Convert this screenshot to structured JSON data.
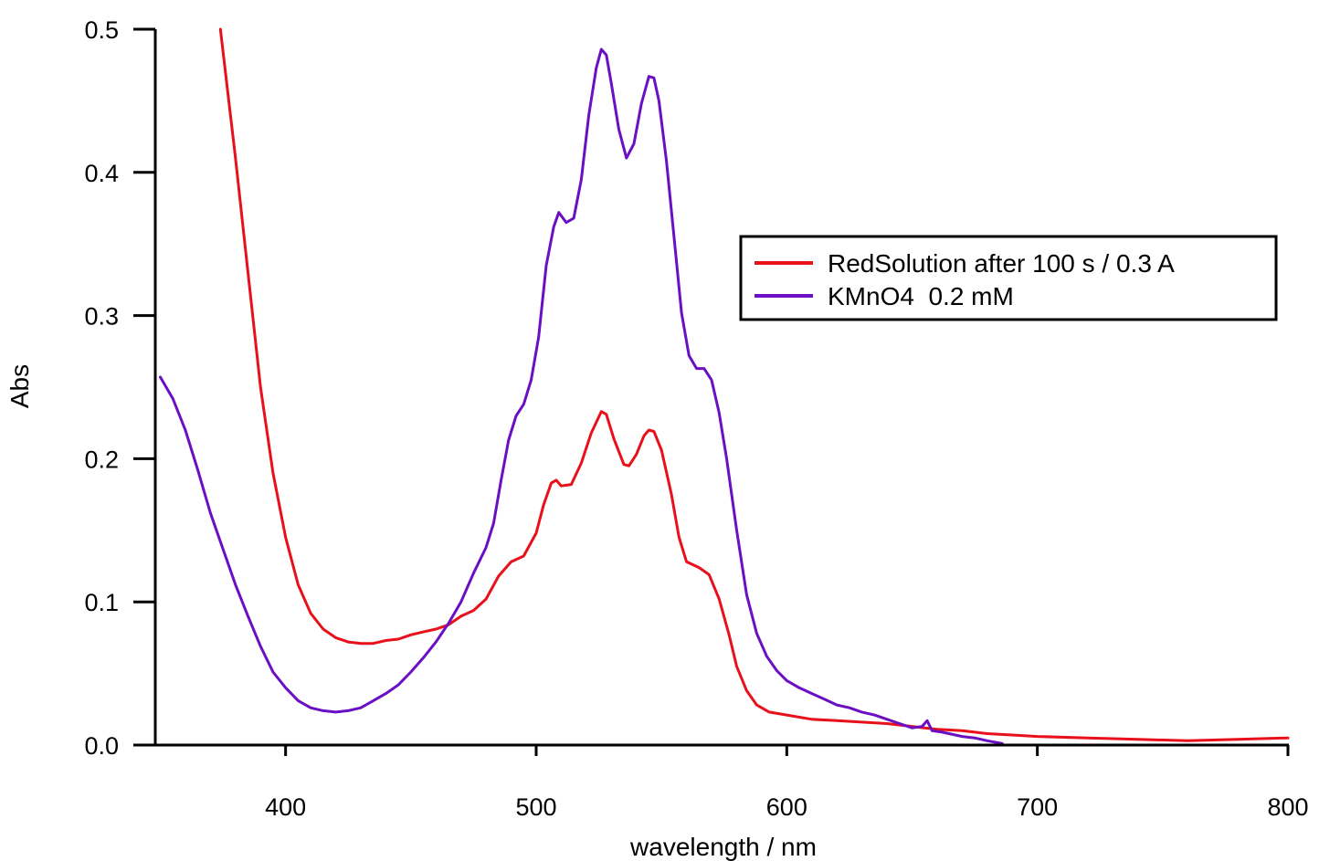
{
  "chart_data": {
    "type": "line",
    "xlabel": "wavelength / nm",
    "ylabel": "Abs",
    "xlim": [
      348,
      800
    ],
    "ylim": [
      0,
      0.5
    ],
    "x_ticks": [
      400,
      500,
      600,
      700,
      800
    ],
    "x_tick_labels": [
      "400",
      "500",
      "600",
      "700",
      "800"
    ],
    "y_ticks": [
      0,
      0.1,
      0.2,
      0.3,
      0.4,
      0.5
    ],
    "y_tick_labels": [
      "0.0",
      "0.1",
      "0.2",
      "0.3",
      "0.4",
      "0.5"
    ],
    "grid": false,
    "legend_position": "top-right",
    "series": [
      {
        "name": "RedSolution after 100 s / 0.3 A",
        "color": "#e8101a",
        "points": [
          [
            374,
            0.5
          ],
          [
            380,
            0.41
          ],
          [
            385,
            0.33
          ],
          [
            390,
            0.25
          ],
          [
            395,
            0.19
          ],
          [
            400,
            0.145
          ],
          [
            405,
            0.112
          ],
          [
            410,
            0.092
          ],
          [
            415,
            0.081
          ],
          [
            420,
            0.075
          ],
          [
            425,
            0.072
          ],
          [
            430,
            0.071
          ],
          [
            435,
            0.071
          ],
          [
            440,
            0.073
          ],
          [
            445,
            0.074
          ],
          [
            450,
            0.077
          ],
          [
            455,
            0.079
          ],
          [
            460,
            0.081
          ],
          [
            465,
            0.084
          ],
          [
            470,
            0.09
          ],
          [
            475,
            0.094
          ],
          [
            480,
            0.102
          ],
          [
            485,
            0.118
          ],
          [
            490,
            0.128
          ],
          [
            495,
            0.132
          ],
          [
            500,
            0.148
          ],
          [
            503,
            0.168
          ],
          [
            506,
            0.183
          ],
          [
            508,
            0.185
          ],
          [
            510,
            0.181
          ],
          [
            514,
            0.182
          ],
          [
            518,
            0.197
          ],
          [
            522,
            0.218
          ],
          [
            526,
            0.233
          ],
          [
            528,
            0.231
          ],
          [
            531,
            0.214
          ],
          [
            535,
            0.196
          ],
          [
            537,
            0.195
          ],
          [
            540,
            0.203
          ],
          [
            543,
            0.216
          ],
          [
            545,
            0.22
          ],
          [
            547,
            0.219
          ],
          [
            550,
            0.206
          ],
          [
            554,
            0.175
          ],
          [
            557,
            0.145
          ],
          [
            560,
            0.128
          ],
          [
            565,
            0.124
          ],
          [
            569,
            0.119
          ],
          [
            573,
            0.102
          ],
          [
            577,
            0.077
          ],
          [
            580,
            0.055
          ],
          [
            584,
            0.038
          ],
          [
            588,
            0.028
          ],
          [
            593,
            0.023
          ],
          [
            600,
            0.021
          ],
          [
            610,
            0.018
          ],
          [
            620,
            0.017
          ],
          [
            630,
            0.016
          ],
          [
            640,
            0.015
          ],
          [
            650,
            0.013
          ],
          [
            655,
            0.012
          ],
          [
            660,
            0.011
          ],
          [
            670,
            0.01
          ],
          [
            680,
            0.008
          ],
          [
            690,
            0.007
          ],
          [
            700,
            0.006
          ],
          [
            720,
            0.005
          ],
          [
            740,
            0.004
          ],
          [
            760,
            0.003
          ],
          [
            780,
            0.004
          ],
          [
            800,
            0.005
          ]
        ]
      },
      {
        "name": "KMnO4  0.2 mM",
        "color": "#6a0fc4",
        "points": [
          [
            350,
            0.257
          ],
          [
            355,
            0.242
          ],
          [
            360,
            0.22
          ],
          [
            365,
            0.192
          ],
          [
            370,
            0.162
          ],
          [
            375,
            0.137
          ],
          [
            380,
            0.112
          ],
          [
            385,
            0.09
          ],
          [
            390,
            0.069
          ],
          [
            395,
            0.051
          ],
          [
            400,
            0.04
          ],
          [
            405,
            0.031
          ],
          [
            410,
            0.026
          ],
          [
            415,
            0.024
          ],
          [
            420,
            0.023
          ],
          [
            425,
            0.024
          ],
          [
            430,
            0.026
          ],
          [
            435,
            0.031
          ],
          [
            440,
            0.036
          ],
          [
            445,
            0.042
          ],
          [
            450,
            0.051
          ],
          [
            455,
            0.061
          ],
          [
            460,
            0.072
          ],
          [
            465,
            0.085
          ],
          [
            470,
            0.1
          ],
          [
            475,
            0.12
          ],
          [
            480,
            0.138
          ],
          [
            483,
            0.155
          ],
          [
            486,
            0.185
          ],
          [
            489,
            0.213
          ],
          [
            492,
            0.23
          ],
          [
            495,
            0.238
          ],
          [
            498,
            0.255
          ],
          [
            501,
            0.285
          ],
          [
            504,
            0.335
          ],
          [
            507,
            0.362
          ],
          [
            509,
            0.372
          ],
          [
            512,
            0.365
          ],
          [
            515,
            0.368
          ],
          [
            518,
            0.395
          ],
          [
            521,
            0.44
          ],
          [
            524,
            0.473
          ],
          [
            526,
            0.486
          ],
          [
            528,
            0.482
          ],
          [
            530,
            0.462
          ],
          [
            533,
            0.43
          ],
          [
            536,
            0.41
          ],
          [
            539,
            0.42
          ],
          [
            542,
            0.448
          ],
          [
            545,
            0.467
          ],
          [
            547,
            0.466
          ],
          [
            549,
            0.45
          ],
          [
            552,
            0.408
          ],
          [
            555,
            0.355
          ],
          [
            558,
            0.302
          ],
          [
            561,
            0.272
          ],
          [
            564,
            0.263
          ],
          [
            567,
            0.263
          ],
          [
            570,
            0.255
          ],
          [
            573,
            0.232
          ],
          [
            576,
            0.2
          ],
          [
            580,
            0.15
          ],
          [
            584,
            0.105
          ],
          [
            588,
            0.078
          ],
          [
            592,
            0.062
          ],
          [
            596,
            0.052
          ],
          [
            600,
            0.045
          ],
          [
            605,
            0.04
          ],
          [
            610,
            0.036
          ],
          [
            615,
            0.032
          ],
          [
            620,
            0.028
          ],
          [
            625,
            0.026
          ],
          [
            630,
            0.023
          ],
          [
            635,
            0.021
          ],
          [
            640,
            0.018
          ],
          [
            645,
            0.015
          ],
          [
            650,
            0.012
          ],
          [
            654,
            0.013
          ],
          [
            656,
            0.017
          ],
          [
            658,
            0.01
          ],
          [
            662,
            0.009
          ],
          [
            670,
            0.006
          ],
          [
            675,
            0.005
          ],
          [
            680,
            0.003
          ],
          [
            686,
            0.001
          ]
        ]
      }
    ]
  }
}
